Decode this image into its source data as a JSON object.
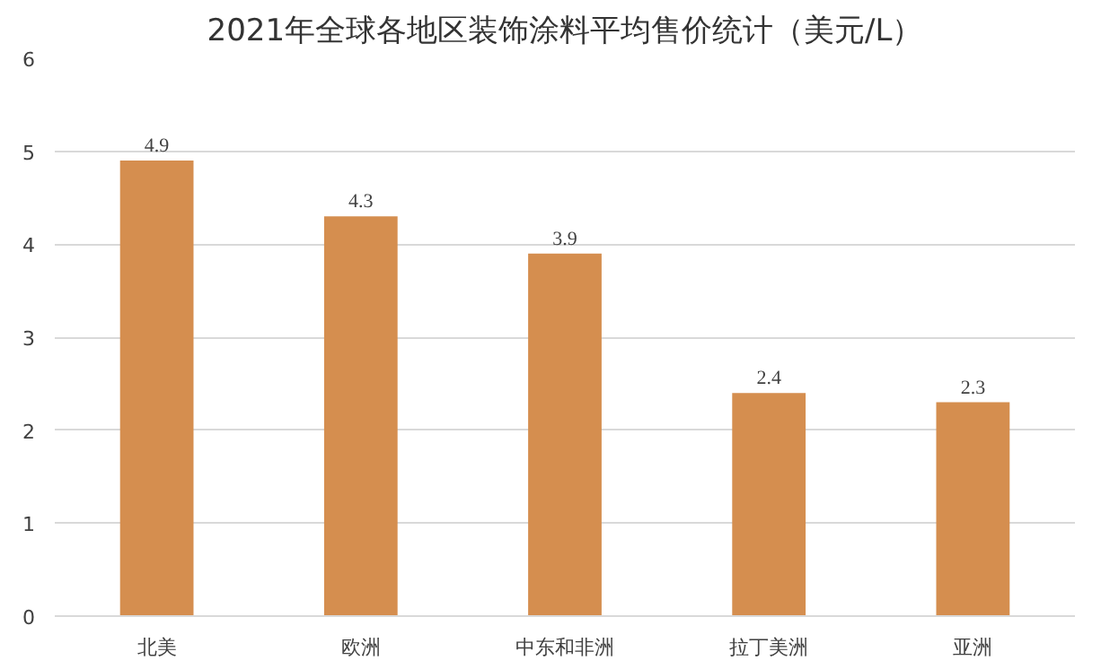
{
  "chart_data": {
    "type": "bar",
    "title": "2021年全球各地区装饰涂料平均售价统计（美元/L）",
    "categories": [
      "北美",
      "欧洲",
      "中东和非洲",
      "拉丁美洲",
      "亚洲"
    ],
    "values": [
      4.9,
      4.3,
      3.9,
      2.4,
      2.3
    ],
    "color": "#d58e4f",
    "ylim": [
      0,
      6
    ],
    "yticks": [
      0,
      1,
      2,
      3,
      4,
      5,
      6
    ],
    "grid": "y",
    "data_labels": true
  }
}
